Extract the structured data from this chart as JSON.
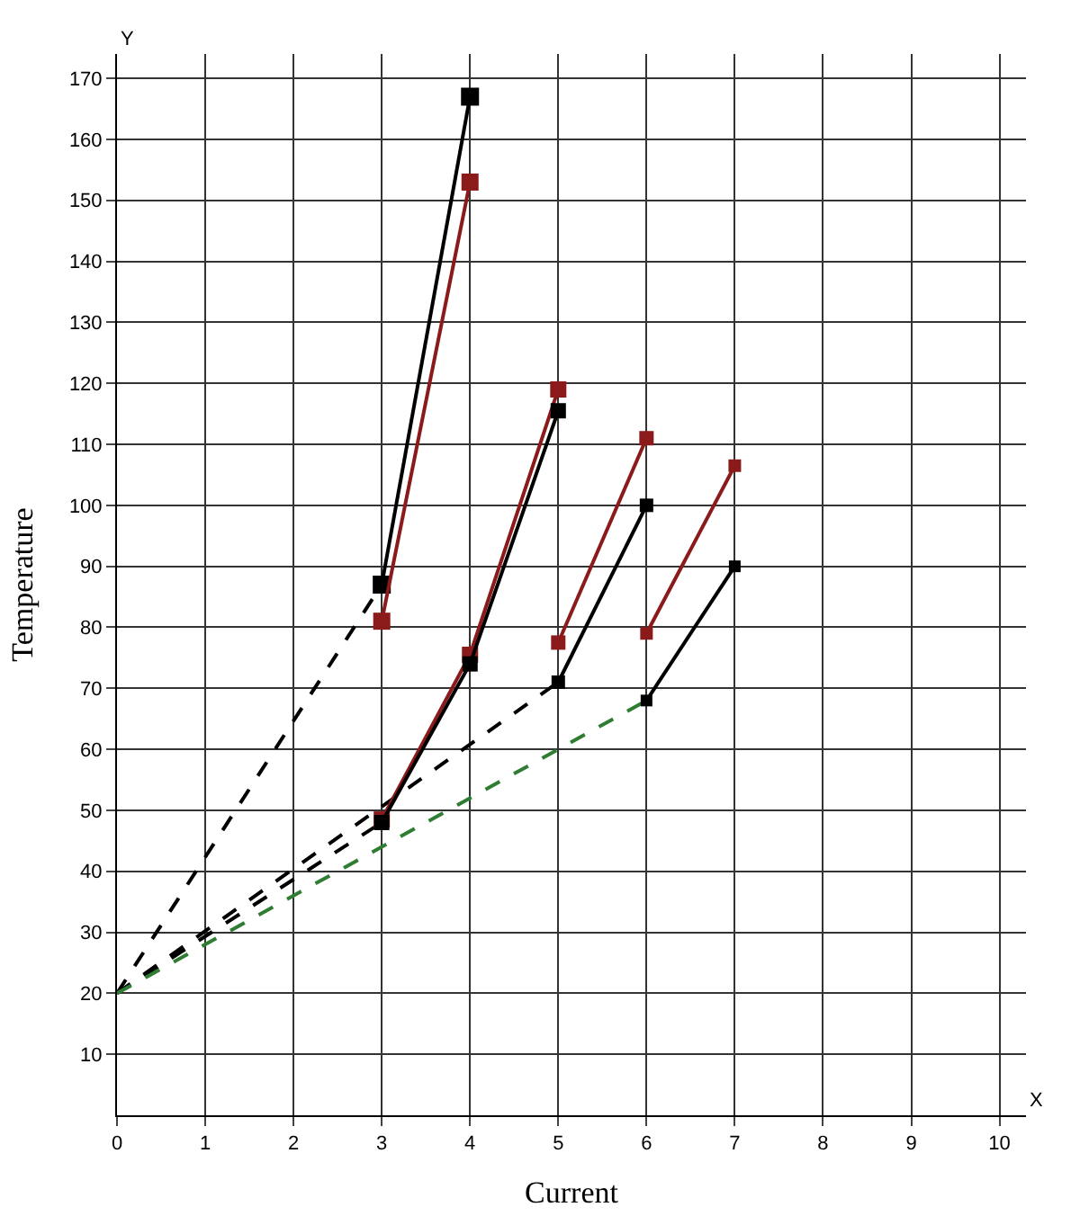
{
  "chart_data": {
    "type": "line",
    "xlabel": "Current",
    "ylabel": "Temperature",
    "annotations": [
      "X",
      "Y"
    ],
    "xlim": [
      0,
      10.3
    ],
    "ylim": [
      0,
      174
    ],
    "xticks": [
      0,
      1,
      2,
      3,
      4,
      5,
      6,
      7,
      8,
      9,
      10
    ],
    "yticks": [
      10,
      20,
      30,
      40,
      50,
      60,
      70,
      80,
      90,
      100,
      110,
      120,
      130,
      140,
      150,
      160,
      170
    ],
    "grid": true,
    "series": [
      {
        "color": "#000000",
        "x": [
          0,
          3
        ],
        "values": [
          20,
          87
        ],
        "line_style": "dashed"
      },
      {
        "color": "#000000",
        "x": [
          0,
          3
        ],
        "values": [
          20,
          48
        ],
        "line_style": "dashed"
      },
      {
        "color": "#000000",
        "x": [
          0,
          5
        ],
        "values": [
          20,
          71
        ],
        "line_style": "dashed"
      },
      {
        "color": "#2e7d32",
        "x": [
          0,
          6
        ],
        "values": [
          20,
          68
        ],
        "line_style": "dashed"
      },
      {
        "color": "#000000",
        "x": [
          3,
          4
        ],
        "values": [
          87,
          167
        ],
        "line_style": "solid",
        "marker": "square"
      },
      {
        "color": "#8b1a1a",
        "x": [
          3,
          4
        ],
        "values": [
          81,
          153
        ],
        "line_style": "solid",
        "marker": "square"
      },
      {
        "color": "#8b1a1a",
        "x": [
          3,
          4,
          5
        ],
        "values": [
          48.5,
          75.5,
          119
        ],
        "line_style": "solid",
        "marker": "square"
      },
      {
        "color": "#000000",
        "x": [
          3,
          4,
          5
        ],
        "values": [
          48,
          74,
          115.5
        ],
        "line_style": "solid",
        "marker": "square"
      },
      {
        "color": "#8b1a1a",
        "x": [
          5,
          6
        ],
        "values": [
          77.5,
          111
        ],
        "line_style": "solid",
        "marker": "square"
      },
      {
        "color": "#000000",
        "x": [
          5,
          6
        ],
        "values": [
          71,
          100
        ],
        "line_style": "solid",
        "marker": "square"
      },
      {
        "color": "#8b1a1a",
        "x": [
          6,
          7
        ],
        "values": [
          79,
          106.5
        ],
        "line_style": "solid",
        "marker": "square"
      },
      {
        "color": "#000000",
        "x": [
          6,
          7
        ],
        "values": [
          68,
          90
        ],
        "line_style": "solid",
        "marker": "square"
      }
    ]
  }
}
